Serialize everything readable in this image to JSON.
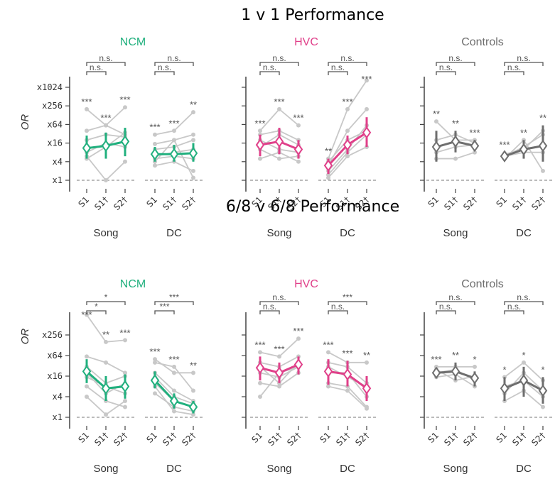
{
  "chart_data": {
    "type": "line",
    "ylabel": "OR",
    "y_ticks": [
      "x1",
      "x4",
      "x16",
      "x64",
      "x256",
      "x1024"
    ],
    "y_tick_values": [
      1,
      4,
      16,
      64,
      256,
      1024
    ],
    "y_scale": "log2",
    "groups": [
      "Song",
      "DC"
    ],
    "conditions": [
      "S1",
      "S1†",
      "S2†"
    ],
    "colors": {
      "NCM": "#21b07e",
      "HVC": "#e0408a",
      "Controls": "#6e6e6e",
      "individual": "#c8c8c8"
    },
    "rows": [
      {
        "title": "1 v 1 Performance",
        "panels": [
          {
            "region": "NCM",
            "groups": [
              {
                "name": "Song",
                "sig": [
                  "***",
                  "***",
                  "***"
                ],
                "comparisons": [
                  "n.s.",
                  "n.s."
                ],
                "mean": [
                  11,
                  13,
                  18
                ],
                "ci": [
                  [
                    5,
                    28
                  ],
                  [
                    5,
                    35
                  ],
                  [
                    6,
                    50
                  ]
                ],
                "individuals": [
                  [
                    200,
                    60,
                    30
                  ],
                  [
                    40,
                    60,
                    230
                  ],
                  [
                    20,
                    30,
                    25
                  ],
                  [
                    8,
                    16,
                    12
                  ],
                  [
                    6,
                    1,
                    4
                  ],
                  [
                    5,
                    12,
                    35
                  ]
                ]
              },
              {
                "name": "DC",
                "sig": [
                  "***",
                  "***",
                  "**"
                ],
                "comparisons": [
                  "n.s.",
                  "n.s."
                ],
                "mean": [
                  7,
                  7,
                  7.5
                ],
                "ci": [
                  [
                    4,
                    12
                  ],
                  [
                    4,
                    14
                  ],
                  [
                    4,
                    16
                  ]
                ],
                "individuals": [
                  [
                    30,
                    40,
                    160
                  ],
                  [
                    15,
                    20,
                    30
                  ],
                  [
                    10,
                    12,
                    20
                  ],
                  [
                    5,
                    6,
                    5
                  ],
                  [
                    3,
                    4,
                    2
                  ],
                  [
                    6,
                    8,
                    10
                  ],
                  [
                    4,
                    20,
                    1.2
                  ]
                ]
              }
            ]
          },
          {
            "region": "HVC",
            "groups": [
              {
                "name": "Song",
                "sig": [
                  "***",
                  "***",
                  "***"
                ],
                "comparisons": [
                  "n.s.",
                  "n.s."
                ],
                "mean": [
                  14,
                  18,
                  10
                ],
                "ci": [
                  [
                    6,
                    30
                  ],
                  [
                    7,
                    50
                  ],
                  [
                    5,
                    20
                  ]
                ],
                "individuals": [
                  [
                    40,
                    200,
                    60
                  ],
                  [
                    30,
                    40,
                    20
                  ],
                  [
                    20,
                    10,
                    8
                  ],
                  [
                    10,
                    5,
                    6
                  ],
                  [
                    5,
                    8,
                    4
                  ],
                  [
                    12,
                    30,
                    14
                  ]
                ]
              },
              {
                "name": "DC",
                "sig": [
                  "**",
                  "***",
                  "***"
                ],
                "comparisons": [
                  "n.s.",
                  "n.s."
                ],
                "mean": [
                  3,
                  14,
                  35
                ],
                "ci": [
                  [
                    1.6,
                    5
                  ],
                  [
                    7,
                    28
                  ],
                  [
                    12,
                    110
                  ]
                ],
                "individuals": [
                  [
                    5,
                    200,
                    1700
                  ],
                  [
                    3,
                    40,
                    200
                  ],
                  [
                    2,
                    10,
                    60
                  ],
                  [
                    1.5,
                    8,
                    30
                  ],
                  [
                    1.2,
                    6,
                    12
                  ],
                  [
                    4,
                    20,
                    40
                  ]
                ]
              }
            ]
          },
          {
            "region": "Controls",
            "groups": [
              {
                "name": "Song",
                "sig": [
                  "**",
                  "**",
                  "***"
                ],
                "comparisons": [
                  "n.s.",
                  "n.s."
                ],
                "mean": [
                  12,
                  18,
                  13
                ],
                "ci": [
                  [
                    4,
                    40
                  ],
                  [
                    8,
                    40
                  ],
                  [
                    9,
                    20
                  ]
                ],
                "individuals": [
                  [
                    80,
                    20,
                    20
                  ],
                  [
                    20,
                    30,
                    16
                  ],
                  [
                    8,
                    12,
                    14
                  ],
                  [
                    5,
                    5,
                    8
                  ]
                ]
              },
              {
                "name": "DC",
                "sig": [
                  "***",
                  "**",
                  "**"
                ],
                "comparisons": [
                  "n.s.",
                  "n.s."
                ],
                "mean": [
                  6,
                  10,
                  13
                ],
                "ci": [
                  [
                    5,
                    8
                  ],
                  [
                    5,
                    20
                  ],
                  [
                    4,
                    60
                  ]
                ],
                "individuals": [
                  [
                    7,
                    10,
                    40
                  ],
                  [
                    6,
                    8,
                    8
                  ],
                  [
                    5,
                    20,
                    2
                  ],
                  [
                    6,
                    12,
                    30
                  ]
                ]
              }
            ]
          }
        ]
      },
      {
        "title": "6/8 v 6/8 Performance",
        "panels": [
          {
            "region": "NCM",
            "groups": [
              {
                "name": "Song",
                "sig": [
                  "***",
                  "**",
                  "***"
                ],
                "comparisons": [
                  "*",
                  "*"
                ],
                "mean": [
                  22,
                  7,
                  8
                ],
                "ci": [
                  [
                    10,
                    50
                  ],
                  [
                    3,
                    16
                  ],
                  [
                    3.5,
                    18
                  ]
                ],
                "individuals": [
                  [
                    1000,
                    160,
                    180
                  ],
                  [
                    60,
                    40,
                    20
                  ],
                  [
                    30,
                    10,
                    16
                  ],
                  [
                    15,
                    8,
                    5
                  ],
                  [
                    8,
                    3,
                    2
                  ],
                  [
                    4,
                    1.2,
                    3
                  ],
                  [
                    20,
                    5,
                    10
                  ]
                ]
              },
              {
                "name": "DC",
                "sig": [
                  "***",
                  "***",
                  "**"
                ],
                "comparisons": [
                  "***",
                  "***"
                ],
                "mean": [
                  12,
                  3,
                  2
                ],
                "ci": [
                  [
                    7,
                    22
                  ],
                  [
                    1.8,
                    5
                  ],
                  [
                    1.3,
                    3
                  ]
                ],
                "individuals": [
                  [
                    50,
                    20,
                    20
                  ],
                  [
                    40,
                    30,
                    6
                  ],
                  [
                    20,
                    6,
                    3
                  ],
                  [
                    10,
                    3,
                    2
                  ],
                  [
                    5,
                    2,
                    1.5
                  ],
                  [
                    8,
                    1.5,
                    1.2
                  ],
                  [
                    15,
                    4,
                    2.5
                  ]
                ]
              }
            ]
          },
          {
            "region": "HVC",
            "groups": [
              {
                "name": "Song",
                "sig": [
                  "***",
                  "***",
                  "***"
                ],
                "comparisons": [
                  "n.s.",
                  "n.s."
                ],
                "mean": [
                  28,
                  20,
                  35
                ],
                "ci": [
                  [
                    12,
                    60
                  ],
                  [
                    10,
                    40
                  ],
                  [
                    18,
                    60
                  ]
                ],
                "individuals": [
                  [
                    80,
                    60,
                    200
                  ],
                  [
                    40,
                    30,
                    60
                  ],
                  [
                    20,
                    15,
                    30
                  ],
                  [
                    10,
                    8,
                    20
                  ],
                  [
                    4,
                    20,
                    30
                  ],
                  [
                    30,
                    10,
                    40
                  ]
                ]
              },
              {
                "name": "DC",
                "sig": [
                  "***",
                  "***",
                  "**"
                ],
                "comparisons": [
                  "n.s.",
                  "***"
                ],
                "mean": [
                  22,
                  18,
                  7
                ],
                "ci": [
                  [
                    9,
                    50
                  ],
                  [
                    8,
                    45
                  ],
                  [
                    3,
                    16
                  ]
                ],
                "individuals": [
                  [
                    80,
                    40,
                    40
                  ],
                  [
                    40,
                    30,
                    10
                  ],
                  [
                    20,
                    20,
                    4
                  ],
                  [
                    10,
                    8,
                    2
                  ],
                  [
                    8,
                    6,
                    1.8
                  ],
                  [
                    30,
                    15,
                    8
                  ]
                ]
              }
            ]
          },
          {
            "region": "Controls",
            "groups": [
              {
                "name": "Song",
                "sig": [
                  "***",
                  "**",
                  "*"
                ],
                "comparisons": [
                  "n.s.",
                  "n.s."
                ],
                "mean": [
                  20,
                  22,
                  14
                ],
                "ci": [
                  [
                    14,
                    28
                  ],
                  [
                    12,
                    40
                  ],
                  [
                    8,
                    22
                  ]
                ],
                "individuals": [
                  [
                    30,
                    30,
                    30
                  ],
                  [
                    20,
                    25,
                    12
                  ],
                  [
                    15,
                    18,
                    8
                  ],
                  [
                    25,
                    12,
                    16
                  ]
                ]
              },
              {
                "name": "DC",
                "sig": [
                  "*",
                  "*",
                  "*"
                ],
                "comparisons": [
                  "n.s.",
                  "n.s."
                ],
                "mean": [
                  7,
                  12,
                  6
                ],
                "ci": [
                  [
                    3,
                    15
                  ],
                  [
                    4,
                    30
                  ],
                  [
                    2.5,
                    15
                  ]
                ],
                "individuals": [
                  [
                    15,
                    40,
                    12
                  ],
                  [
                    8,
                    12,
                    4
                  ],
                  [
                    3,
                    6,
                    2
                  ],
                  [
                    5,
                    20,
                    6
                  ]
                ]
              }
            ]
          }
        ]
      }
    ]
  }
}
